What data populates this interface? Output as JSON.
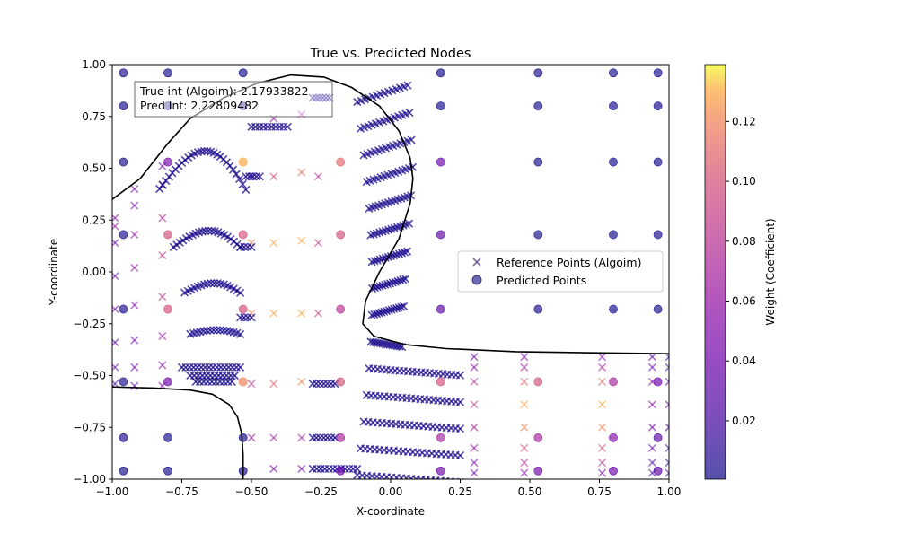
{
  "chart_data": {
    "type": "scatter",
    "title": "True vs. Predicted Nodes",
    "xlabel": "X-coordinate",
    "ylabel": "Y-coordinate",
    "xlim": [
      -1.0,
      1.0
    ],
    "ylim": [
      -1.0,
      1.0
    ],
    "x_ticks": [
      -1.0,
      -0.75,
      -0.5,
      -0.25,
      0.0,
      0.25,
      0.5,
      0.75,
      1.0
    ],
    "x_tick_labels": [
      "−1.00",
      "−0.75",
      "−0.50",
      "−0.25",
      "0.00",
      "0.25",
      "0.50",
      "0.75",
      "1.00"
    ],
    "y_ticks": [
      -1.0,
      -0.75,
      -0.5,
      -0.25,
      0.0,
      0.25,
      0.5,
      0.75,
      1.0
    ],
    "y_tick_labels": [
      "−1.00",
      "−0.75",
      "−0.50",
      "−0.25",
      "0.00",
      "0.25",
      "0.50",
      "0.75",
      "1.00"
    ],
    "grid": false,
    "legend_position": "center-right",
    "annotation_lines": [
      "True int (Algoim): 2.17933822",
      "Pred Int: 2.22809482"
    ],
    "colorbar": {
      "label": "Weight (Coefficient)",
      "colormap": "plasma",
      "range": [
        0.0005,
        0.139
      ],
      "ticks": [
        0.02,
        0.04,
        0.06,
        0.08,
        0.1,
        0.12
      ],
      "tick_labels": [
        "0.02",
        "0.04",
        "0.06",
        "0.08",
        "0.10",
        "0.12"
      ]
    },
    "series": [
      {
        "name": "Reference Points (Algoim)",
        "marker": "x",
        "color_by": "weight",
        "alpha": 0.55,
        "clusters": [
          {
            "x0": -0.99,
            "x1": -0.86,
            "y0": 0.55,
            "y1": 0.7,
            "w": 0.004
          },
          {
            "x0": -0.97,
            "x1": -0.83,
            "y0": -0.95,
            "y1": -0.9,
            "w": 0.004
          },
          {
            "x0": -0.86,
            "x1": -0.58,
            "y0": 0.5,
            "y1": 0.72,
            "w": 0.004
          },
          {
            "x0": -0.84,
            "x1": -0.57,
            "y0": 0.2,
            "y1": 0.35,
            "w": 0.004
          },
          {
            "x0": -0.82,
            "x1": -0.57,
            "y0": 0.05,
            "y1": 0.17,
            "w": 0.004
          },
          {
            "x0": -0.8,
            "x1": -0.57,
            "y0": -0.05,
            "y1": 0.0,
            "w": 0.004
          }
        ],
        "points": [
          [
            -0.99,
            0.22,
            0.06
          ],
          [
            -0.99,
            0.14,
            0.04
          ],
          [
            -0.99,
            0.26,
            0.05
          ],
          [
            -0.99,
            -0.02,
            0.04
          ],
          [
            -0.99,
            -0.18,
            0.04
          ],
          [
            -0.99,
            -0.34,
            0.03
          ],
          [
            -0.99,
            -0.46,
            0.03
          ],
          [
            -0.99,
            -0.54,
            0.02
          ],
          [
            -0.92,
            0.4,
            0.04
          ],
          [
            -0.92,
            0.32,
            0.05
          ],
          [
            -0.92,
            0.18,
            0.06
          ],
          [
            -0.92,
            0.02,
            0.06
          ],
          [
            -0.92,
            -0.16,
            0.05
          ],
          [
            -0.92,
            -0.33,
            0.04
          ],
          [
            -0.92,
            -0.46,
            0.04
          ],
          [
            -0.92,
            -0.55,
            0.03
          ],
          [
            -0.82,
            0.51,
            0.04
          ],
          [
            -0.82,
            0.42,
            0.05
          ],
          [
            -0.82,
            0.26,
            0.07
          ],
          [
            -0.82,
            0.08,
            0.08
          ],
          [
            -0.82,
            -0.12,
            0.08
          ],
          [
            -0.82,
            -0.31,
            0.06
          ],
          [
            -0.82,
            -0.45,
            0.05
          ],
          [
            -0.82,
            -0.55,
            0.04
          ],
          [
            -0.5,
            0.46,
            0.04
          ],
          [
            -0.5,
            0.14,
            0.12
          ],
          [
            -0.5,
            -0.2,
            0.12
          ],
          [
            -0.5,
            -0.54,
            0.08
          ],
          [
            -0.5,
            -0.8,
            0.06
          ],
          [
            -0.42,
            0.74,
            0.06
          ],
          [
            -0.42,
            0.46,
            0.1
          ],
          [
            -0.42,
            0.14,
            0.13
          ],
          [
            -0.42,
            -0.2,
            0.13
          ],
          [
            -0.42,
            -0.54,
            0.11
          ],
          [
            -0.42,
            -0.8,
            0.07
          ],
          [
            -0.42,
            -0.95,
            0.04
          ],
          [
            -0.32,
            0.76,
            0.07
          ],
          [
            -0.32,
            0.48,
            0.11
          ],
          [
            -0.32,
            0.15,
            0.13
          ],
          [
            -0.32,
            -0.2,
            0.13
          ],
          [
            -0.32,
            -0.53,
            0.12
          ],
          [
            -0.32,
            -0.8,
            0.07
          ],
          [
            -0.32,
            -0.95,
            0.04
          ],
          [
            -0.26,
            0.46,
            0.08
          ],
          [
            -0.26,
            0.14,
            0.09
          ],
          [
            -0.26,
            -0.2,
            0.09
          ],
          [
            0.3,
            -0.41,
            0.04
          ],
          [
            0.3,
            -0.46,
            0.05
          ],
          [
            0.3,
            -0.53,
            0.08
          ],
          [
            0.3,
            -0.64,
            0.09
          ],
          [
            0.3,
            -0.75,
            0.07
          ],
          [
            0.3,
            -0.85,
            0.06
          ],
          [
            0.3,
            -0.92,
            0.05
          ],
          [
            0.3,
            -0.97,
            0.04
          ],
          [
            0.48,
            -0.41,
            0.05
          ],
          [
            0.48,
            -0.46,
            0.07
          ],
          [
            0.48,
            -0.53,
            0.11
          ],
          [
            0.48,
            -0.64,
            0.13
          ],
          [
            0.48,
            -0.75,
            0.12
          ],
          [
            0.48,
            -0.85,
            0.1
          ],
          [
            0.48,
            -0.92,
            0.08
          ],
          [
            0.48,
            -0.97,
            0.05
          ],
          [
            0.76,
            -0.41,
            0.05
          ],
          [
            0.76,
            -0.46,
            0.07
          ],
          [
            0.76,
            -0.53,
            0.11
          ],
          [
            0.76,
            -0.64,
            0.13
          ],
          [
            0.76,
            -0.75,
            0.12
          ],
          [
            0.76,
            -0.85,
            0.1
          ],
          [
            0.76,
            -0.92,
            0.08
          ],
          [
            0.76,
            -0.97,
            0.05
          ],
          [
            0.94,
            -0.41,
            0.03
          ],
          [
            0.94,
            -0.46,
            0.04
          ],
          [
            0.94,
            -0.53,
            0.05
          ],
          [
            0.94,
            -0.64,
            0.05
          ],
          [
            0.94,
            -0.75,
            0.04
          ],
          [
            0.94,
            -0.85,
            0.04
          ],
          [
            0.94,
            -0.92,
            0.03
          ],
          [
            0.94,
            -0.97,
            0.02
          ],
          [
            1.0,
            -0.41,
            0.02
          ],
          [
            1.0,
            -0.46,
            0.03
          ],
          [
            1.0,
            -0.53,
            0.03
          ],
          [
            1.0,
            -0.64,
            0.03
          ],
          [
            1.0,
            -0.75,
            0.02
          ],
          [
            1.0,
            -0.85,
            0.02
          ],
          [
            1.0,
            -0.92,
            0.02
          ],
          [
            1.0,
            -0.97,
            0.02
          ]
        ]
      },
      {
        "name": "Predicted Points",
        "marker": "o",
        "color_by": "weight",
        "alpha": 0.65,
        "points": [
          [
            -0.96,
            0.96,
            0.002
          ],
          [
            -0.8,
            0.96,
            0.002
          ],
          [
            -0.53,
            0.96,
            0.002
          ],
          [
            -0.96,
            0.8,
            0.002
          ],
          [
            -0.8,
            0.8,
            0.002
          ],
          [
            -0.53,
            0.8,
            0.002
          ],
          [
            -0.96,
            0.53,
            0.003
          ],
          [
            -0.8,
            0.53,
            0.045
          ],
          [
            -0.53,
            0.53,
            0.13
          ],
          [
            -0.18,
            0.53,
            0.11
          ],
          [
            0.18,
            0.53,
            0.04
          ],
          [
            0.53,
            0.53,
            0.002
          ],
          [
            0.8,
            0.53,
            0.002
          ],
          [
            0.96,
            0.53,
            0.002
          ],
          [
            -0.96,
            0.18,
            0.003
          ],
          [
            -0.8,
            0.18,
            0.1
          ],
          [
            -0.53,
            0.18,
            0.1
          ],
          [
            -0.18,
            0.18,
            0.1
          ],
          [
            0.18,
            0.18,
            0.03
          ],
          [
            0.53,
            0.18,
            0.002
          ],
          [
            0.8,
            0.18,
            0.002
          ],
          [
            0.96,
            0.18,
            0.002
          ],
          [
            -0.96,
            -0.18,
            0.003
          ],
          [
            -0.8,
            -0.18,
            0.1
          ],
          [
            -0.53,
            -0.18,
            0.1
          ],
          [
            -0.18,
            -0.18,
            0.08
          ],
          [
            0.18,
            -0.18,
            0.03
          ],
          [
            0.53,
            -0.18,
            0.002
          ],
          [
            0.8,
            -0.18,
            0.002
          ],
          [
            0.96,
            -0.18,
            0.002
          ],
          [
            -0.96,
            -0.53,
            0.003
          ],
          [
            -0.8,
            -0.53,
            0.04
          ],
          [
            -0.53,
            -0.53,
            0.12
          ],
          [
            -0.18,
            -0.53,
            0.1
          ],
          [
            0.18,
            -0.53,
            0.1
          ],
          [
            0.53,
            -0.53,
            0.1
          ],
          [
            0.8,
            -0.53,
            0.07
          ],
          [
            0.96,
            -0.53,
            0.04
          ],
          [
            -0.96,
            -0.8,
            0.003
          ],
          [
            -0.8,
            -0.8,
            0.003
          ],
          [
            -0.53,
            -0.8,
            0.003
          ],
          [
            -0.18,
            -0.8,
            0.07
          ],
          [
            0.18,
            -0.8,
            0.07
          ],
          [
            0.53,
            -0.8,
            0.07
          ],
          [
            0.8,
            -0.8,
            0.05
          ],
          [
            0.96,
            -0.8,
            0.03
          ],
          [
            -0.96,
            -0.96,
            0.002
          ],
          [
            -0.8,
            -0.96,
            0.002
          ],
          [
            -0.53,
            -0.96,
            0.002
          ],
          [
            -0.18,
            -0.96,
            0.04
          ],
          [
            0.18,
            -0.96,
            0.04
          ],
          [
            0.53,
            -0.96,
            0.04
          ],
          [
            0.8,
            -0.96,
            0.04
          ],
          [
            0.96,
            -0.96,
            0.03
          ],
          [
            0.18,
            0.8,
            0.002
          ],
          [
            0.53,
            0.8,
            0.002
          ],
          [
            0.8,
            0.8,
            0.002
          ],
          [
            0.96,
            0.8,
            0.002
          ],
          [
            0.18,
            0.96,
            0.002
          ],
          [
            0.53,
            0.96,
            0.002
          ],
          [
            0.8,
            0.96,
            0.002
          ],
          [
            0.96,
            0.96,
            0.002
          ]
        ]
      }
    ],
    "strips": [
      {
        "kind": "arc",
        "x0": -0.83,
        "x1": -0.52,
        "ybase": 0.4,
        "amp": 0.28,
        "n": 28,
        "w": 0.004
      },
      {
        "kind": "arc",
        "x0": -0.78,
        "x1": -0.54,
        "ybase": 0.12,
        "amp": 0.12,
        "n": 22,
        "w": 0.004
      },
      {
        "kind": "arc",
        "x0": -0.74,
        "x1": -0.54,
        "ybase": -0.1,
        "amp": 0.07,
        "n": 18,
        "w": 0.004
      },
      {
        "kind": "arc",
        "x0": -0.72,
        "x1": -0.54,
        "ybase": -0.3,
        "amp": 0.03,
        "n": 16,
        "w": 0.004
      },
      {
        "kind": "flat",
        "x0": -0.75,
        "x1": -0.54,
        "y": -0.46,
        "n": 16,
        "w": 0.004
      },
      {
        "kind": "flat",
        "x0": -0.72,
        "x1": -0.56,
        "y": -0.5,
        "n": 12,
        "w": 0.004
      },
      {
        "kind": "flat",
        "x0": -0.7,
        "x1": -0.57,
        "y": -0.53,
        "n": 10,
        "w": 0.004
      },
      {
        "kind": "flat",
        "x0": -0.5,
        "x1": -0.37,
        "y": 0.7,
        "n": 10,
        "w": 0.004
      },
      {
        "kind": "flat",
        "x0": -0.52,
        "x1": -0.47,
        "y": 0.46,
        "n": 5,
        "w": 0.004
      },
      {
        "kind": "flat",
        "x0": -0.54,
        "x1": -0.5,
        "y": 0.12,
        "n": 4,
        "w": 0.004
      },
      {
        "kind": "flat",
        "x0": -0.54,
        "x1": -0.5,
        "y": -0.22,
        "n": 4,
        "w": 0.004
      },
      {
        "kind": "flat",
        "x0": -0.28,
        "x1": -0.2,
        "y": -0.8,
        "n": 7,
        "w": 0.004
      },
      {
        "kind": "flat",
        "x0": -0.28,
        "x1": -0.12,
        "y": -0.95,
        "n": 12,
        "w": 0.004
      },
      {
        "kind": "flat",
        "x0": -0.28,
        "x1": -0.2,
        "y": -0.54,
        "n": 7,
        "w": 0.004
      },
      {
        "kind": "flat",
        "x0": -0.28,
        "x1": -0.22,
        "y": 0.84,
        "n": 6,
        "w": 0.004
      },
      {
        "kind": "fan",
        "n_rows": 15,
        "w": 0.004
      }
    ],
    "boundary_curves": [
      [
        [
          -1.0,
          0.35
        ],
        [
          -0.9,
          0.45
        ],
        [
          -0.8,
          0.62
        ],
        [
          -0.72,
          0.74
        ],
        [
          -0.6,
          0.84
        ],
        [
          -0.48,
          0.91
        ],
        [
          -0.36,
          0.95
        ],
        [
          -0.24,
          0.94
        ],
        [
          -0.14,
          0.89
        ],
        [
          -0.04,
          0.8
        ],
        [
          0.03,
          0.68
        ],
        [
          0.07,
          0.55
        ],
        [
          0.08,
          0.45
        ],
        [
          0.07,
          0.33
        ],
        [
          0.03,
          0.16
        ],
        [
          -0.04,
          0.0
        ],
        [
          -0.09,
          -0.14
        ],
        [
          -0.1,
          -0.25
        ],
        [
          -0.06,
          -0.31
        ],
        [
          0.05,
          -0.35
        ],
        [
          0.2,
          -0.37
        ],
        [
          0.45,
          -0.385
        ],
        [
          0.7,
          -0.39
        ],
        [
          1.0,
          -0.395
        ]
      ],
      [
        [
          -1.0,
          -0.555
        ],
        [
          -0.85,
          -0.56
        ],
        [
          -0.72,
          -0.57
        ],
        [
          -0.64,
          -0.59
        ],
        [
          -0.58,
          -0.64
        ],
        [
          -0.55,
          -0.7
        ],
        [
          -0.535,
          -0.78
        ],
        [
          -0.53,
          -0.88
        ],
        [
          -0.53,
          -1.0
        ]
      ]
    ]
  }
}
